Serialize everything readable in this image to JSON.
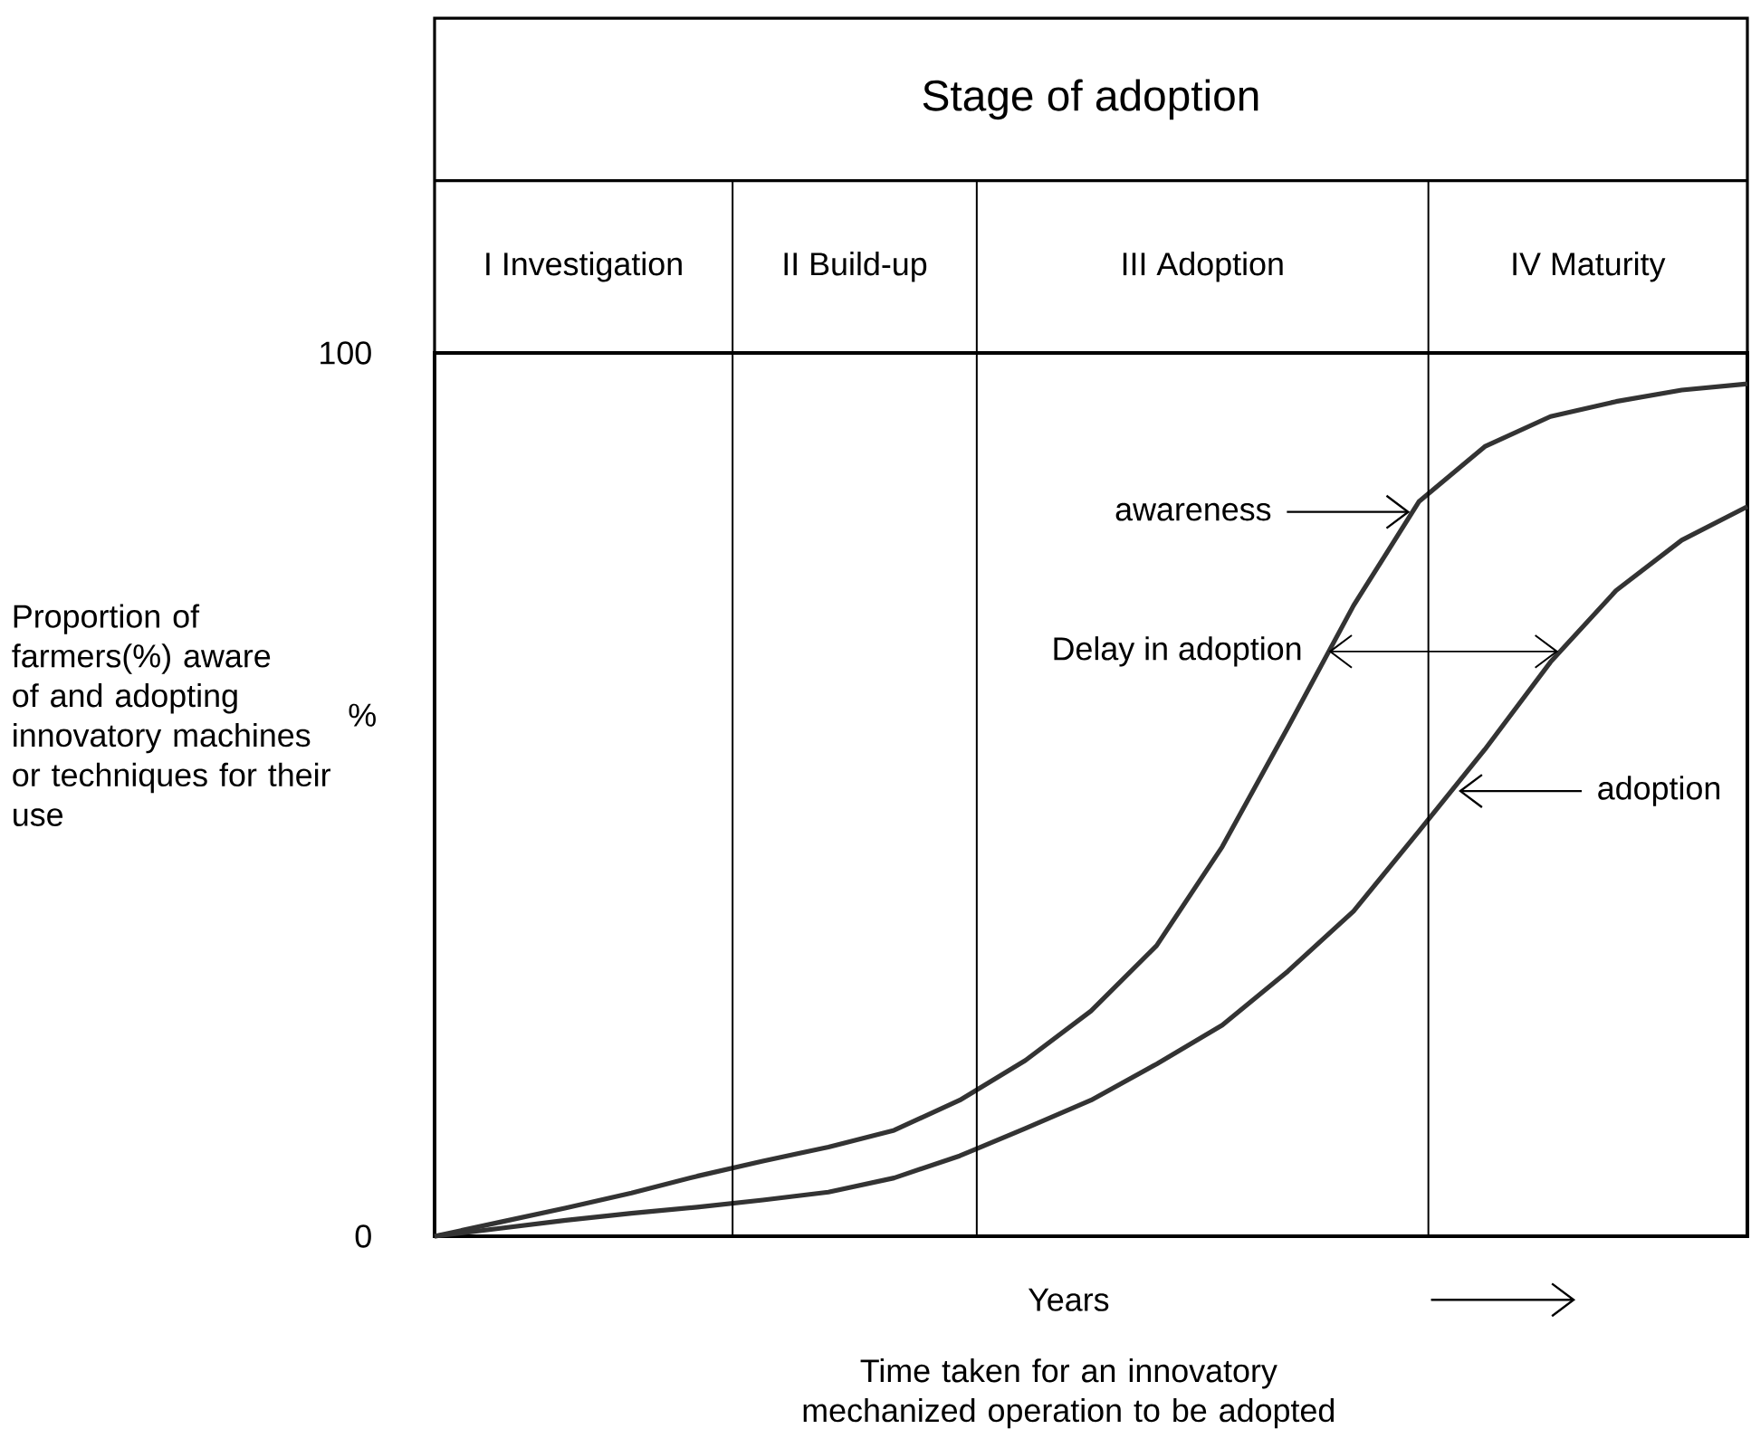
{
  "chart_data": {
    "type": "line",
    "title": "Stage of adoption",
    "xlabel": "Years",
    "ylabel": "Proportion of farmers(%) aware of and adopting innovatory machines or techniques for their use",
    "categories": [
      null,
      null,
      null,
      null,
      null,
      null,
      null,
      null,
      null,
      null,
      null,
      null,
      null,
      null,
      null,
      null,
      null,
      null,
      null,
      null,
      null
    ],
    "ylim": [
      0,
      100
    ],
    "yticks": [
      0,
      100
    ],
    "tick_labels": "y",
    "marker": "none",
    "line_style": "solid",
    "series": [
      {
        "color": "#333333",
        "values": [
          0,
          1.6,
          3.2,
          4.9,
          6.8,
          8.5,
          10.1,
          12.0,
          15.4,
          19.9,
          25.5,
          32.9,
          44.1,
          57.6,
          71.4,
          83.2,
          89.4,
          92.8,
          94.5,
          95.8,
          96.5
        ]
      },
      {
        "color": "#333333",
        "values": [
          0,
          0.9,
          1.8,
          2.6,
          3.3,
          4.1,
          5.0,
          6.6,
          9.1,
          12.2,
          15.4,
          19.5,
          23.9,
          30.0,
          36.8,
          45.9,
          55.1,
          65.0,
          73.1,
          78.8,
          82.6
        ]
      }
    ],
    "annotations": [
      "awareness",
      "Delay in adoption",
      "adoption",
      "%",
      "Time taken for an innovatory mechanized operation to be adopted",
      "I Investigation",
      "II Build-up",
      "III Adoption",
      "IV Maturity"
    ]
  }
}
